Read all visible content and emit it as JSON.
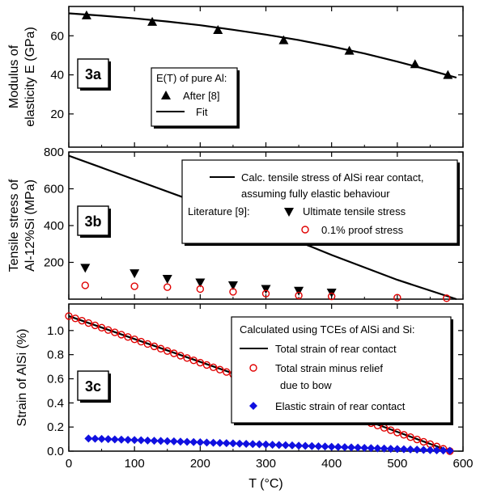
{
  "figure": {
    "xlabel": "T (°C)",
    "x_ticks": [
      "0",
      "100",
      "200",
      "300",
      "400",
      "500",
      "600"
    ],
    "x_tick_values": [
      0,
      100,
      200,
      300,
      400,
      500,
      600
    ],
    "xlim": [
      0,
      600
    ]
  },
  "chart_data": [
    {
      "type": "line",
      "panel_label": "3a",
      "ylabel": [
        "Modulus of",
        "elasticity E (GPa)"
      ],
      "ylim": [
        3,
        75
      ],
      "y_ticks": [
        "20",
        "40",
        "60"
      ],
      "y_tick_values": [
        20,
        40,
        60
      ],
      "legend": {
        "title": "E(T) of pure Al:",
        "placement": "center",
        "entries": [
          "After [8]",
          "Fit"
        ]
      },
      "series": [
        {
          "name": "After [8]",
          "marker": "triangle-up",
          "color": "#000000",
          "x": [
            27,
            127,
            227,
            327,
            427,
            527,
            577
          ],
          "y": [
            70.5,
            67.2,
            63.0,
            57.8,
            52.4,
            45.5,
            40.0
          ]
        },
        {
          "name": "Fit",
          "style": "solid-line",
          "color": "#000000",
          "x": [
            0,
            50,
            100,
            150,
            200,
            250,
            300,
            350,
            400,
            450,
            500,
            550,
            590
          ],
          "y": [
            71.5,
            70.3,
            68.9,
            67.3,
            65.4,
            63.1,
            60.6,
            57.8,
            54.5,
            50.9,
            46.8,
            42.3,
            38.6
          ]
        }
      ]
    },
    {
      "type": "line",
      "panel_label": "3b",
      "ylabel": [
        "Tensile stress of",
        "Al-12%Si (MPa)"
      ],
      "ylim": [
        0,
        800
      ],
      "y_ticks": [
        "200",
        "400",
        "600",
        "800"
      ],
      "y_tick_values": [
        200,
        400,
        600,
        800
      ],
      "legend": {
        "placement": "top-right",
        "entries": [
          "Calc. tensile stress of AlSi rear contact,",
          "assuming fully elastic behaviour",
          "Literature [9]:",
          "Ultimate tensile stress",
          "0.1% proof stress"
        ]
      },
      "series": [
        {
          "name": "Calc. tensile stress of AlSi rear contact, assuming fully elastic behaviour",
          "style": "solid-line",
          "color": "#000000",
          "x": [
            0,
            100,
            200,
            300,
            400,
            500,
            590
          ],
          "y": [
            780,
            650,
            520,
            385,
            240,
            105,
            0
          ]
        },
        {
          "name": "Ultimate tensile stress",
          "marker": "triangle-down",
          "color": "#000000",
          "x": [
            25,
            100,
            150,
            200,
            250,
            300,
            350,
            400
          ],
          "y": [
            170,
            140,
            110,
            90,
            75,
            55,
            45,
            35
          ]
        },
        {
          "name": "0.1% proof stress",
          "marker": "open-circle",
          "color": "#e00000",
          "x": [
            25,
            100,
            150,
            200,
            250,
            300,
            350,
            400,
            500,
            575
          ],
          "y": [
            75,
            70,
            65,
            55,
            40,
            30,
            20,
            15,
            8,
            5
          ]
        }
      ]
    },
    {
      "type": "line",
      "panel_label": "3c",
      "ylabel": [
        "Strain of AlSi (%)"
      ],
      "ylim": [
        0,
        1.22
      ],
      "y_ticks": [
        "0.0",
        "0.2",
        "0.4",
        "0.6",
        "0.8",
        "1.0"
      ],
      "y_tick_values": [
        0.0,
        0.2,
        0.4,
        0.6,
        0.8,
        1.0
      ],
      "legend": {
        "placement": "top-right",
        "entries": [
          "Calculated using TCEs of AlSi and Si:",
          "Total strain of rear contact",
          "Total strain minus relief",
          "due to bow",
          "Elastic strain of rear contact"
        ]
      },
      "series": [
        {
          "name": "Total strain of rear contact",
          "style": "solid-line",
          "color": "#000000",
          "x": [
            0,
            100,
            200,
            300,
            400,
            500,
            580
          ],
          "y": [
            1.12,
            0.93,
            0.74,
            0.55,
            0.36,
            0.16,
            0.0
          ]
        },
        {
          "name": "Total strain minus relief due to bow",
          "marker": "open-circle",
          "color": "#e00000",
          "x_start": 0,
          "x_end": 580,
          "x_step": 10,
          "y_start": 1.12,
          "y_end": 0.0
        },
        {
          "name": "Elastic strain of rear contact",
          "marker": "diamond",
          "color": "#1010e0",
          "x_start": 30,
          "x_end": 580,
          "x_step": 10,
          "y_start": 0.105,
          "y_end": 0.003
        }
      ]
    }
  ]
}
